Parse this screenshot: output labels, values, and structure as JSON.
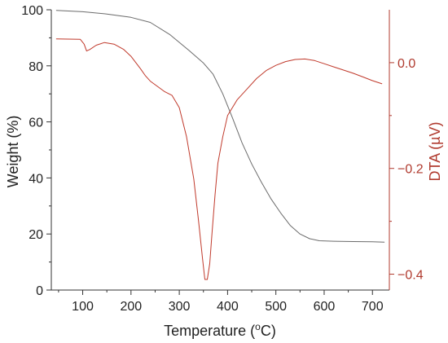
{
  "chart_data": {
    "type": "line",
    "title": "",
    "xlabel": {
      "base": "Temperature (",
      "sup": "o",
      "tail": "C)"
    },
    "ylabel_left": "Weight (%)",
    "ylabel_right": "DTA (µV)",
    "xlim": [
      35,
      735
    ],
    "ylim_left": [
      0,
      100
    ],
    "ylim_right": [
      -0.43,
      0.1
    ],
    "x_ticks": [
      100,
      200,
      300,
      400,
      500,
      600,
      700
    ],
    "y_ticks_left": [
      0,
      20,
      40,
      60,
      80,
      100
    ],
    "y_ticks_right": [
      -0.4,
      -0.2,
      0.0
    ],
    "y_tick_labels_right": [
      "−0.4",
      "−0.2",
      "0.0"
    ],
    "grid": false,
    "colors": {
      "weight": "#6b6b6b",
      "dta": "#c0392b",
      "axis_left": "#333333",
      "axis_right": "#b03a2e"
    },
    "series": [
      {
        "axis": "left",
        "points": [
          [
            45,
            99.8
          ],
          [
            100,
            99.3
          ],
          [
            150,
            98.5
          ],
          [
            200,
            97.3
          ],
          [
            240,
            95.5
          ],
          [
            280,
            91.2
          ],
          [
            320,
            85.5
          ],
          [
            350,
            81.0
          ],
          [
            370,
            77.0
          ],
          [
            390,
            70.0
          ],
          [
            410,
            61.5
          ],
          [
            430,
            52.5
          ],
          [
            450,
            45.0
          ],
          [
            470,
            38.5
          ],
          [
            490,
            32.5
          ],
          [
            510,
            27.5
          ],
          [
            530,
            23.0
          ],
          [
            550,
            20.0
          ],
          [
            570,
            18.3
          ],
          [
            590,
            17.6
          ],
          [
            620,
            17.4
          ],
          [
            660,
            17.3
          ],
          [
            700,
            17.2
          ],
          [
            725,
            17.1
          ]
        ]
      },
      {
        "axis": "right",
        "points": [
          [
            45,
            0.045
          ],
          [
            95,
            0.044
          ],
          [
            103,
            0.035
          ],
          [
            108,
            0.022
          ],
          [
            115,
            0.025
          ],
          [
            128,
            0.033
          ],
          [
            145,
            0.038
          ],
          [
            165,
            0.035
          ],
          [
            185,
            0.025
          ],
          [
            200,
            0.012
          ],
          [
            210,
            0.0
          ],
          [
            220,
            -0.012
          ],
          [
            230,
            -0.025
          ],
          [
            240,
            -0.035
          ],
          [
            255,
            -0.045
          ],
          [
            270,
            -0.055
          ],
          [
            285,
            -0.062
          ],
          [
            300,
            -0.085
          ],
          [
            315,
            -0.14
          ],
          [
            330,
            -0.22
          ],
          [
            340,
            -0.3
          ],
          [
            348,
            -0.37
          ],
          [
            353,
            -0.41
          ],
          [
            358,
            -0.41
          ],
          [
            363,
            -0.38
          ],
          [
            368,
            -0.32
          ],
          [
            374,
            -0.25
          ],
          [
            380,
            -0.19
          ],
          [
            390,
            -0.14
          ],
          [
            400,
            -0.1
          ],
          [
            420,
            -0.07
          ],
          [
            440,
            -0.05
          ],
          [
            460,
            -0.03
          ],
          [
            480,
            -0.015
          ],
          [
            500,
            -0.005
          ],
          [
            520,
            0.002
          ],
          [
            540,
            0.006
          ],
          [
            560,
            0.007
          ],
          [
            580,
            0.004
          ],
          [
            600,
            -0.002
          ],
          [
            620,
            -0.008
          ],
          [
            640,
            -0.014
          ],
          [
            660,
            -0.02
          ],
          [
            680,
            -0.027
          ],
          [
            700,
            -0.034
          ],
          [
            720,
            -0.04
          ]
        ]
      }
    ]
  }
}
